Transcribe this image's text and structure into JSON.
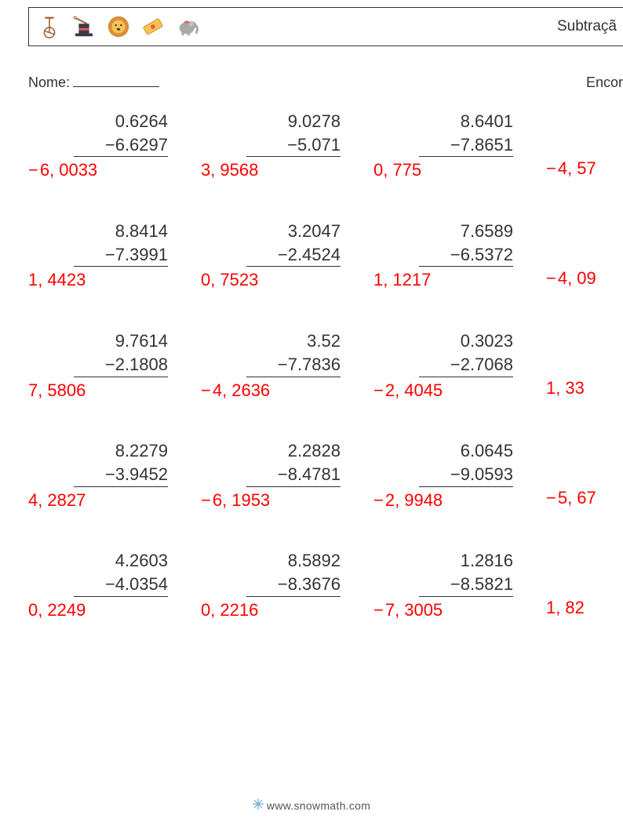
{
  "header": {
    "title_right": "Subtraçã",
    "icons": [
      "unicycle-icon",
      "magic-hat-icon",
      "lion-icon",
      "ticket-icon",
      "elephant-icon"
    ]
  },
  "name_row": {
    "label": "Nome:",
    "hint_right": "Encor"
  },
  "problems": [
    [
      {
        "a": "0.6264",
        "b": "6.6297",
        "ans_neg": true,
        "ans_a": "6,",
        "ans_b": "0033"
      },
      {
        "a": "9.0278",
        "b": "5.071",
        "ans_neg": false,
        "ans_a": "3,",
        "ans_b": "9568"
      },
      {
        "a": "8.6401",
        "b": "7.8651",
        "ans_neg": false,
        "ans_a": "0,",
        "ans_b": "775"
      },
      {
        "a": "",
        "b": "",
        "ans_neg": true,
        "ans_a": "4,",
        "ans_b": "57",
        "partial": true
      }
    ],
    [
      {
        "a": "8.8414",
        "b": "7.3991",
        "ans_neg": false,
        "ans_a": "1,",
        "ans_b": "4423"
      },
      {
        "a": "3.2047",
        "b": "2.4524",
        "ans_neg": false,
        "ans_a": "0,",
        "ans_b": "7523"
      },
      {
        "a": "7.6589",
        "b": "6.5372",
        "ans_neg": false,
        "ans_a": "1,",
        "ans_b": "1217"
      },
      {
        "a": "",
        "b": "",
        "ans_neg": true,
        "ans_a": "4,",
        "ans_b": "09",
        "partial": true
      }
    ],
    [
      {
        "a": "9.7614",
        "b": "2.1808",
        "ans_neg": false,
        "ans_a": "7,",
        "ans_b": "5806"
      },
      {
        "a": "3.52",
        "b": "7.7836",
        "ans_neg": true,
        "ans_a": "4,",
        "ans_b": "2636"
      },
      {
        "a": "0.3023",
        "b": "2.7068",
        "ans_neg": true,
        "ans_a": "2,",
        "ans_b": "4045"
      },
      {
        "a": "",
        "b": "",
        "ans_neg": false,
        "ans_a": "1,",
        "ans_b": "33",
        "partial": true
      }
    ],
    [
      {
        "a": "8.2279",
        "b": "3.9452",
        "ans_neg": false,
        "ans_a": "4,",
        "ans_b": "2827"
      },
      {
        "a": "2.2828",
        "b": "8.4781",
        "ans_neg": true,
        "ans_a": "6,",
        "ans_b": "1953"
      },
      {
        "a": "6.0645",
        "b": "9.0593",
        "ans_neg": true,
        "ans_a": "2,",
        "ans_b": "9948"
      },
      {
        "a": "",
        "b": "",
        "ans_neg": true,
        "ans_a": "5,",
        "ans_b": "67",
        "partial": true
      }
    ],
    [
      {
        "a": "4.2603",
        "b": "4.0354",
        "ans_neg": false,
        "ans_a": "0,",
        "ans_b": "2249"
      },
      {
        "a": "8.5892",
        "b": "8.3676",
        "ans_neg": false,
        "ans_a": "0,",
        "ans_b": "2216"
      },
      {
        "a": "1.2816",
        "b": "8.5821",
        "ans_neg": true,
        "ans_a": "7,",
        "ans_b": "3005"
      },
      {
        "a": "",
        "b": "",
        "ans_neg": false,
        "ans_a": "1,",
        "ans_b": "82",
        "partial": true
      }
    ]
  ],
  "footer": {
    "text": "www.snowmath.com"
  },
  "style": {
    "text_color": "#333333",
    "answer_color": "#ff0000",
    "font_size_body": 22,
    "font_size_header": 19,
    "bg": "#ffffff",
    "icon_outline": "#9a5b2f",
    "icon_fill_yellow": "#f6c451",
    "icon_fill_red": "#e35b4f",
    "icon_fill_gray": "#a9a9a9"
  }
}
